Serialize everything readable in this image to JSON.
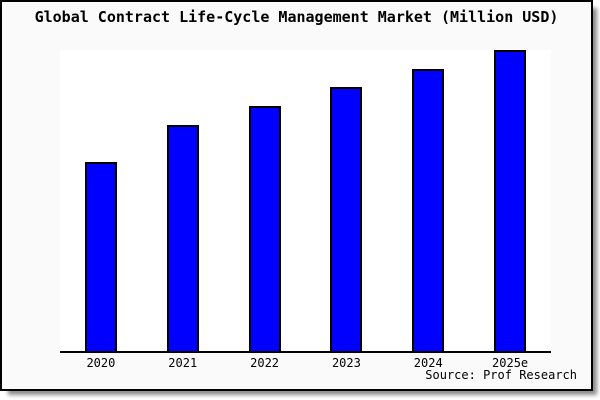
{
  "window": {
    "source_note": "Source: Prof Research"
  },
  "colors": {
    "background": "#fafafa",
    "plot_background": "#ffffff",
    "bar_fill": "#0000ff",
    "bar_border": "#000000",
    "axis": "#000000",
    "text": "#000000"
  },
  "chart_data": {
    "type": "bar",
    "title": "Global Contract Life-Cycle Management Market (Million USD)",
    "categories": [
      "2020",
      "2021",
      "2022",
      "2023",
      "2024",
      "2025e"
    ],
    "values": [
      62.8,
      75.1,
      81.4,
      87.7,
      93.7,
      100
    ],
    "value_unit": "percent of tallest (2025e) bar; no y-axis scale shown",
    "xlabel": "",
    "ylabel": "",
    "ylim": [
      0,
      100
    ],
    "grid": false,
    "legend_position": "none",
    "annotation": "Source: Prof Research"
  }
}
